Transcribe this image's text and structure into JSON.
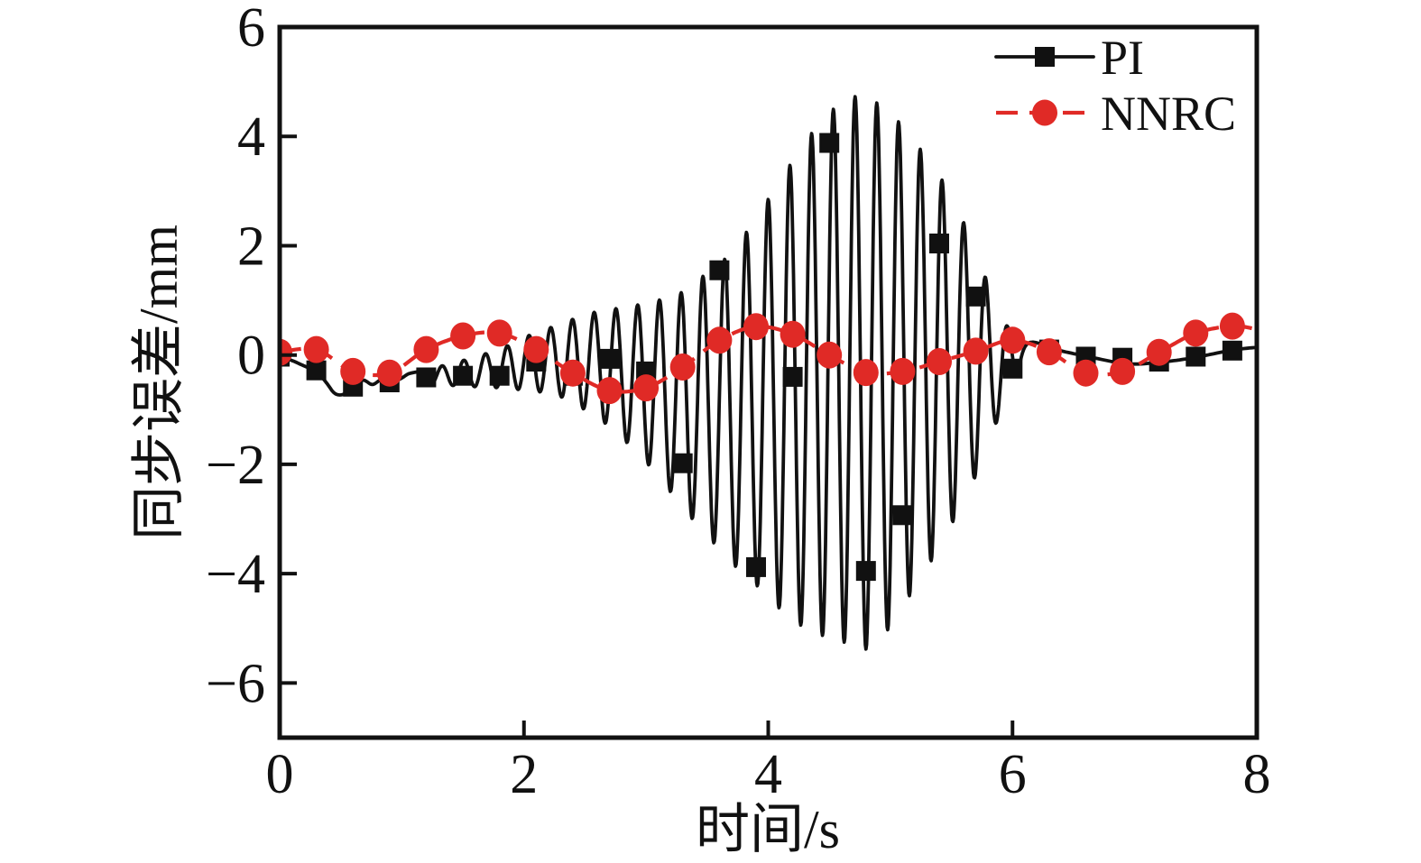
{
  "figure": {
    "background": "#ffffff",
    "frame_color": "#111111",
    "pi_color": "#111111",
    "nnrc_color": "#e02a26"
  },
  "axes": {
    "x": {
      "title": "时间/s",
      "tick_labels": [
        "0",
        "2",
        "4",
        "6",
        "8"
      ],
      "tick_values": [
        0,
        2,
        4,
        6,
        8
      ]
    },
    "y": {
      "title": "同步误差/mm",
      "tick_labels": [
        "6",
        "4",
        "2",
        "0",
        "−2",
        "−4",
        "−6"
      ],
      "tick_values": [
        6,
        4,
        2,
        0,
        -2,
        -4,
        -6
      ]
    }
  },
  "legend": {
    "position": "top-right-inside",
    "items": [
      {
        "label": "PI",
        "marker": "filled-square",
        "line": "solid"
      },
      {
        "label": "NNRC",
        "marker": "filled-circle",
        "line": "dashed"
      }
    ]
  },
  "chart_data": {
    "type": "line",
    "title": "",
    "xlabel": "时间/s",
    "ylabel": "同步误差/mm",
    "xlim": [
      0,
      8
    ],
    "ylim": [
      -7,
      6
    ],
    "grid": false,
    "legend_position": "top-right",
    "marker_sample_interval_s": 0.3,
    "marker_t": [
      0,
      0.3,
      0.6,
      0.9,
      1.2,
      1.5,
      1.8,
      2.1,
      2.4,
      2.7,
      3,
      3.3,
      3.6,
      3.9,
      4.2,
      4.5,
      4.8,
      5.1,
      5.4,
      5.7,
      6,
      6.3,
      6.6,
      6.9,
      7.2,
      7.5,
      7.8
    ],
    "series": [
      {
        "name": "PI",
        "color": "#111111",
        "line_style": "solid",
        "marker": "filled-square",
        "marker_y": [
          -0.03,
          -0.28,
          -0.58,
          -0.5,
          -0.41,
          -0.38,
          -0.38,
          -0.12,
          -0.38,
          -0.07,
          -0.3,
          -1.98,
          1.55,
          -3.88,
          -0.4,
          3.88,
          -3.95,
          -2.93,
          2.04,
          1.07,
          -0.25,
          0.1,
          -0.03,
          -0.05,
          -0.12,
          -0.03,
          0.08
        ],
        "line_model": {
          "head_points": [
            [
              0,
              -0.03
            ],
            [
              0.1,
              -0.1
            ],
            [
              0.2,
              -0.2
            ],
            [
              0.3,
              -0.3
            ],
            [
              0.38,
              -0.5
            ],
            [
              0.45,
              -0.7
            ],
            [
              0.52,
              -0.72
            ],
            [
              0.6,
              -0.6
            ],
            [
              0.68,
              -0.46
            ],
            [
              0.76,
              -0.54
            ],
            [
              0.84,
              -0.44
            ],
            [
              0.92,
              -0.5
            ],
            [
              1,
              -0.42
            ],
            [
              1.06,
              -0.34
            ],
            [
              1.151,
              -0.3
            ]
          ],
          "oscillation": {
            "t_start": 1.151,
            "t_end": 6.046,
            "period_s": 0.178,
            "trough_anchor_t": 4.8,
            "envelope_t": [
              1.151,
              1.5,
              1.8,
              2.1,
              2.3,
              2.5,
              2.7,
              2.9,
              3.1,
              3.3,
              3.5,
              3.7,
              3.9,
              4.1,
              4.3,
              4.5,
              4.7,
              4.8,
              4.9,
              5.1,
              5.3,
              5.5,
              5.7,
              5.9,
              6.046
            ],
            "envelope_upper": [
              -0.3,
              -0.1,
              0.1,
              0.42,
              0.56,
              0.75,
              0.83,
              0.9,
              1,
              1.15,
              1.5,
              1.85,
              2.5,
              3.2,
              3.9,
              4.45,
              4.73,
              4.7,
              4.6,
              4.2,
              3.6,
              2.95,
              1.9,
              0.68,
              0.3
            ],
            "envelope_lower": [
              -0.52,
              -0.57,
              -0.6,
              -0.66,
              -0.76,
              -1,
              -1.3,
              -1.72,
              -2.2,
              -2.8,
              -3.3,
              -3.8,
              -4.2,
              -4.65,
              -5,
              -5.18,
              -5.3,
              -5.38,
              -5.3,
              -4.6,
              -3.9,
              -3.1,
              -2.2,
              -1.05,
              -0.3
            ]
          },
          "tail_points": [
            [
              6.046,
              -0.3
            ],
            [
              6.13,
              0.22
            ],
            [
              6.37,
              0.09
            ],
            [
              6.6,
              -0.02
            ],
            [
              6.94,
              -0.16
            ],
            [
              7.21,
              -0.13
            ],
            [
              7.48,
              -0.05
            ],
            [
              7.8,
              0.09
            ],
            [
              8,
              0.14
            ]
          ]
        }
      },
      {
        "name": "NNRC",
        "color": "#e02a26",
        "line_style": "dashed",
        "marker": "filled-circle",
        "marker_y": [
          0.05,
          0.1,
          -0.3,
          -0.33,
          0.1,
          0.35,
          0.4,
          0.1,
          -0.33,
          -0.65,
          -0.6,
          -0.22,
          0.27,
          0.52,
          0.38,
          0,
          -0.32,
          -0.3,
          -0.12,
          0.07,
          0.27,
          0.06,
          -0.33,
          -0.3,
          0.05,
          0.4,
          0.53
        ],
        "line_end_point": [
          8,
          0.47
        ]
      }
    ]
  }
}
